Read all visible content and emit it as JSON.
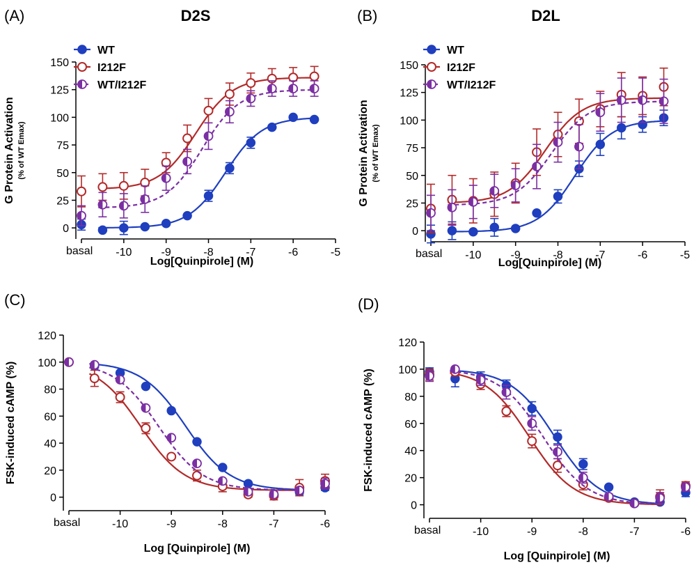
{
  "colors": {
    "WT": "#1f3fbf",
    "I212F": "#b22a2a",
    "WT/I212F": "#7b2fa3"
  },
  "chart_data": [
    {
      "panel_label": "(A)",
      "title": "D2S",
      "type": "scatter",
      "xlabel": "Log[Quinpirole] (M)",
      "ylabel": "G Protein Activation",
      "ylabel_sub": "(% of WT Emax)",
      "x_tick_values": [
        -10,
        -9,
        -8,
        -7,
        -6,
        -5
      ],
      "x_tick_labels": [
        "-10",
        "-9",
        "-8",
        "-7",
        "-6",
        "-5"
      ],
      "basal_label": "basal",
      "y_tick_values": [
        0,
        25,
        50,
        75,
        100,
        125,
        150
      ],
      "y_tick_labels": [
        "0",
        "25",
        "50",
        "75",
        "100",
        "125",
        "150"
      ],
      "xlim": [
        -11.0,
        -5.0
      ],
      "ylim": [
        -10,
        150
      ],
      "legend_position": "top-left",
      "series": [
        {
          "name": "WT",
          "marker": "filled",
          "line": "solid",
          "x": [
            -11.0,
            -10.5,
            -10.0,
            -9.5,
            -9.0,
            -8.5,
            -8.0,
            -7.5,
            -7.0,
            -6.5,
            -6.0,
            -5.5
          ],
          "y": [
            3,
            -2,
            0,
            1,
            4,
            11,
            29,
            54,
            77,
            91,
            100,
            98
          ],
          "err": [
            5,
            0,
            6,
            0,
            0,
            0,
            5,
            5,
            5,
            0,
            0,
            0
          ],
          "fit": {
            "bottom": 0,
            "top": 100,
            "logec50": -7.6,
            "hill": 1.0
          }
        },
        {
          "name": "I212F",
          "marker": "open",
          "line": "solid",
          "x": [
            -11.0,
            -10.5,
            -10.0,
            -9.5,
            -9.0,
            -8.5,
            -8.0,
            -7.5,
            -7.0,
            -6.5,
            -6.0,
            -5.5
          ],
          "y": [
            33,
            37,
            38,
            41,
            59,
            81,
            106,
            121,
            131,
            135,
            136,
            137
          ],
          "err": [
            14,
            12,
            12,
            12,
            9,
            12,
            11,
            10,
            9,
            9,
            9,
            9
          ],
          "fit": {
            "bottom": 35,
            "top": 136,
            "logec50": -8.3,
            "hill": 1.0
          }
        },
        {
          "name": "WT/I212F",
          "marker": "half",
          "line": "dashed",
          "x": [
            -11.0,
            -10.5,
            -10.0,
            -9.5,
            -9.0,
            -8.5,
            -8.0,
            -7.5,
            -7.0,
            -6.5,
            -6.0,
            -5.5
          ],
          "y": [
            11,
            21,
            20,
            26,
            45,
            60,
            83,
            105,
            117,
            126,
            126,
            126
          ],
          "err": [
            9,
            11,
            11,
            12,
            11,
            11,
            12,
            10,
            7,
            7,
            7,
            7
          ],
          "fit": {
            "bottom": 18,
            "top": 125,
            "logec50": -8.15,
            "hill": 1.0
          }
        }
      ]
    },
    {
      "panel_label": "(B)",
      "title": "D2L",
      "type": "scatter",
      "xlabel": "Log[Quinpirole] (M)",
      "ylabel": "G Protein Activation",
      "ylabel_sub": "(% of WT Emax)",
      "x_tick_values": [
        -10,
        -9,
        -8,
        -7,
        -6,
        -5
      ],
      "x_tick_labels": [
        "-10",
        "-9",
        "-8",
        "-7",
        "-6",
        "-5"
      ],
      "basal_label": "basal",
      "y_tick_values": [
        0,
        25,
        50,
        75,
        100,
        125,
        150
      ],
      "y_tick_labels": [
        "0",
        "25",
        "50",
        "75",
        "100",
        "125",
        "150"
      ],
      "xlim": [
        -11.0,
        -5.0
      ],
      "ylim": [
        -10,
        150
      ],
      "legend_position": "top-left",
      "series": [
        {
          "name": "WT",
          "marker": "filled",
          "line": "solid",
          "x": [
            -11.0,
            -10.5,
            -10.0,
            -9.5,
            -9.0,
            -8.5,
            -8.0,
            -7.5,
            -7.0,
            -6.5,
            -6.0,
            -5.5
          ],
          "y": [
            -3,
            0,
            -1,
            3,
            2,
            16,
            31,
            56,
            78,
            93,
            96,
            102
          ],
          "err": [
            8,
            8,
            0,
            8,
            0,
            0,
            6,
            7,
            10,
            10,
            7,
            7
          ],
          "fit": {
            "bottom": -1,
            "top": 100,
            "logec50": -7.6,
            "hill": 1.0
          }
        },
        {
          "name": "I212F",
          "marker": "open",
          "line": "solid",
          "x": [
            -11.0,
            -10.5,
            -10.0,
            -9.5,
            -9.0,
            -8.5,
            -8.0,
            -7.5,
            -7.0,
            -6.5,
            -6.0,
            -5.5
          ],
          "y": [
            20,
            28,
            27,
            33,
            43,
            71,
            87,
            99,
            110,
            123,
            122,
            130
          ],
          "err": [
            22,
            22,
            20,
            20,
            18,
            21,
            20,
            20,
            16,
            20,
            17,
            17
          ],
          "fit": {
            "bottom": 25,
            "top": 120,
            "logec50": -8.3,
            "hill": 1.0
          }
        },
        {
          "name": "WT/I212F",
          "marker": "half",
          "line": "dashed",
          "x": [
            -11.0,
            -10.5,
            -10.0,
            -9.5,
            -9.0,
            -8.5,
            -8.0,
            -7.5,
            -7.0,
            -6.5,
            -6.0,
            -5.5
          ],
          "y": [
            16,
            21,
            26,
            36,
            41,
            58,
            80,
            76,
            107,
            118,
            118,
            117
          ],
          "err": [
            16,
            16,
            15,
            15,
            15,
            20,
            18,
            20,
            17,
            20,
            20,
            20
          ],
          "fit": {
            "bottom": 23,
            "top": 117,
            "logec50": -8.15,
            "hill": 1.0
          }
        }
      ]
    },
    {
      "panel_label": "(C)",
      "title": "",
      "type": "scatter",
      "xlabel": "Log [Quinpirole] (M)",
      "ylabel": "FSK-induced cAMP (%)",
      "ylabel_sub": "",
      "x_tick_values": [
        -10,
        -9,
        -8,
        -7,
        -6
      ],
      "x_tick_labels": [
        "-10",
        "-9",
        "-8",
        "-7",
        "-6"
      ],
      "basal_label": "basal",
      "y_tick_values": [
        0,
        20,
        40,
        60,
        80,
        100,
        120
      ],
      "y_tick_labels": [
        "0",
        "20",
        "40",
        "60",
        "80",
        "100",
        "120"
      ],
      "xlim": [
        -11.0,
        -6.0
      ],
      "ylim": [
        -10,
        120
      ],
      "legend_position": "none",
      "series": [
        {
          "name": "WT",
          "marker": "filled",
          "line": "solid",
          "x": [
            -11.0,
            -10.5,
            -10.0,
            -9.5,
            -9.0,
            -8.5,
            -8.0,
            -7.5,
            -7.0,
            -6.5,
            -6.0
          ],
          "y": [
            100,
            97,
            92,
            82,
            64,
            41,
            22,
            10,
            2,
            4,
            7
          ],
          "err": [
            0,
            0,
            0,
            0,
            0,
            0,
            0,
            0,
            2,
            2,
            2
          ],
          "fit": {
            "bottom": 5,
            "top": 100,
            "logec50": -8.72,
            "hill": -1.0
          }
        },
        {
          "name": "I212F",
          "marker": "open",
          "line": "solid",
          "x": [
            -11.0,
            -10.5,
            -10.0,
            -9.5,
            -9.0,
            -8.5,
            -8.0,
            -7.5,
            -7.0,
            -6.5,
            -6.0
          ],
          "y": [
            100,
            88,
            74,
            51,
            30,
            16,
            8,
            2,
            1,
            7,
            12
          ],
          "err": [
            0,
            6,
            4,
            4,
            0,
            4,
            4,
            2,
            3,
            6,
            5
          ],
          "fit": {
            "bottom": 5,
            "top": 100,
            "logec50": -9.6,
            "hill": -1.0
          }
        },
        {
          "name": "WT/I212F",
          "marker": "half",
          "line": "dashed",
          "x": [
            -11.0,
            -10.5,
            -10.0,
            -9.5,
            -9.0,
            -8.5,
            -8.0,
            -7.5,
            -7.0,
            -6.5,
            -6.0
          ],
          "y": [
            100,
            98,
            87,
            66,
            44,
            25,
            12,
            4,
            2,
            5,
            10
          ],
          "err": [
            0,
            0,
            0,
            0,
            0,
            0,
            0,
            0,
            0,
            0,
            4
          ],
          "fit": {
            "bottom": 5,
            "top": 100,
            "logec50": -9.25,
            "hill": -1.0
          }
        }
      ]
    },
    {
      "panel_label": "(D)",
      "title": "",
      "type": "scatter",
      "xlabel": "Log [Quinpirole] (M)",
      "ylabel": "FSK-induced cAMP (%)",
      "ylabel_sub": "",
      "x_tick_values": [
        -10,
        -9,
        -8,
        -7,
        -6
      ],
      "x_tick_labels": [
        "-10",
        "-9",
        "-8",
        "-7",
        "-6"
      ],
      "basal_label": "basal",
      "y_tick_values": [
        0,
        20,
        40,
        60,
        80,
        100,
        120
      ],
      "y_tick_labels": [
        "0",
        "20",
        "40",
        "60",
        "80",
        "100",
        "120"
      ],
      "xlim": [
        -11.0,
        -6.0
      ],
      "ylim": [
        -10,
        120
      ],
      "legend_position": "none",
      "series": [
        {
          "name": "WT",
          "marker": "filled",
          "line": "solid",
          "x": [
            -11.0,
            -10.5,
            -10.0,
            -9.5,
            -9.0,
            -8.5,
            -8.0,
            -7.5,
            -7.0,
            -6.5,
            -6.0
          ],
          "y": [
            98,
            93,
            94,
            88,
            71,
            50,
            30,
            13,
            2,
            2,
            9
          ],
          "err": [
            3,
            6,
            4,
            4,
            5,
            5,
            4,
            0,
            0,
            0,
            3
          ],
          "fit": {
            "bottom": 0,
            "top": 100,
            "logec50": -8.55,
            "hill": -1.0
          }
        },
        {
          "name": "I212F",
          "marker": "open",
          "line": "solid",
          "x": [
            -11.0,
            -10.5,
            -10.0,
            -9.5,
            -9.0,
            -8.5,
            -8.0,
            -7.5,
            -7.0,
            -6.5,
            -6.0
          ],
          "y": [
            96,
            98,
            89,
            69,
            47,
            29,
            15,
            5,
            1,
            6,
            14
          ],
          "err": [
            4,
            3,
            4,
            4,
            5,
            5,
            4,
            2,
            1,
            5,
            3
          ],
          "fit": {
            "bottom": 0,
            "top": 100,
            "logec50": -9.05,
            "hill": -1.0
          }
        },
        {
          "name": "WT/I212F",
          "marker": "half",
          "line": "dashed",
          "x": [
            -11.0,
            -10.5,
            -10.0,
            -9.5,
            -9.0,
            -8.5,
            -8.0,
            -7.5,
            -7.0,
            -6.5,
            -6.0
          ],
          "y": [
            95,
            100,
            92,
            83,
            60,
            39,
            20,
            6,
            1,
            5,
            13
          ],
          "err": [
            4,
            0,
            4,
            5,
            5,
            5,
            4,
            2,
            1,
            4,
            3
          ],
          "fit": {
            "bottom": 0,
            "top": 100,
            "logec50": -8.78,
            "hill": -1.0
          }
        }
      ]
    }
  ]
}
